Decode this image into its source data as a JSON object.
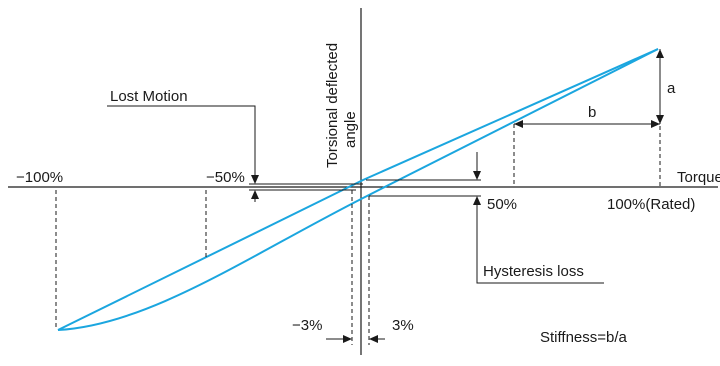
{
  "labels": {
    "y_axis_line1": "Torsional deflected",
    "y_axis_line2": "angle",
    "x_axis": "Torque",
    "neg100": "−100%",
    "neg50": "−50%",
    "pos50": "50%",
    "pos100": "100%(Rated)",
    "lost_motion": "Lost Motion",
    "hysteresis_loss": "Hysteresis loss",
    "neg3": "−3%",
    "pos3": "3%",
    "a": "a",
    "b": "b",
    "stiffness": "Stiffness=b/a"
  },
  "colors": {
    "curve": "#1ba6df",
    "lines": "#1a1a1a"
  }
}
